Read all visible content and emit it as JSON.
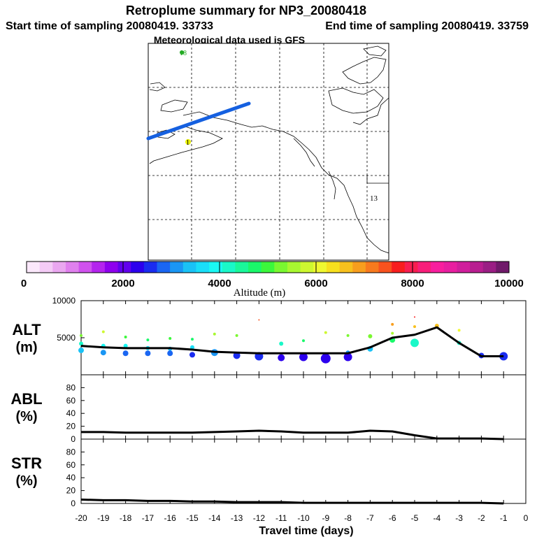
{
  "header": {
    "title": "Retroplume summary for NP3_20080418",
    "start_label": "Start time of sampling 20080419. 33733",
    "end_label": "End time of sampling 20080419. 33759",
    "met_label": "Meteorological data used is GFS"
  },
  "map": {
    "day_labels": [
      {
        "text": "18",
        "color": "#22aa22"
      },
      {
        "text": "13",
        "color": "#000000"
      },
      {
        "text": "1",
        "color": "#000000"
      }
    ],
    "track_color": "#1560e0"
  },
  "colorbar": {
    "label": "Altitude (m)",
    "tick_labels": [
      "0",
      "2000",
      "4000",
      "6000",
      "8000",
      "10000"
    ],
    "colors": [
      "#fbe8fb",
      "#f4cbf6",
      "#eaa7f0",
      "#e080ee",
      "#d052ee",
      "#b424ee",
      "#8e00ee",
      "#6200ee",
      "#2c00ee",
      "#1a2cf0",
      "#1a66f2",
      "#1a96f4",
      "#1ac2f6",
      "#1adef8",
      "#1af8f4",
      "#1af8c8",
      "#1af89a",
      "#1af86a",
      "#3cf83c",
      "#7af830",
      "#a8f830",
      "#cef830",
      "#f0f830",
      "#f8e01e",
      "#f8c01e",
      "#f89e1e",
      "#f87a1e",
      "#f8521e",
      "#f81e1e",
      "#f81e50",
      "#f81e7a",
      "#f81e9e",
      "#e81ea0",
      "#d01e9c",
      "#b81e90",
      "#9a1e84",
      "#701a6a"
    ]
  },
  "chart_data": [
    {
      "type": "line",
      "panel": "ALT",
      "ylabel": "ALT\n(m)",
      "ylabel_lines": [
        "ALT",
        "(m)"
      ],
      "ylim": [
        0,
        10000
      ],
      "yticks": [
        "10000",
        "5000"
      ],
      "x": [
        -20,
        -19,
        -18,
        -17,
        -16,
        -15,
        -14,
        -13,
        -12,
        -11,
        -10,
        -9,
        -8,
        -7,
        -6,
        -5,
        -4,
        -3,
        -2,
        -1
      ],
      "values": [
        3900,
        3700,
        3600,
        3600,
        3600,
        3400,
        3100,
        3000,
        2900,
        2900,
        2900,
        2900,
        2900,
        3700,
        5000,
        5400,
        6400,
        4300,
        2500,
        2500
      ],
      "particles": [
        {
          "x": -20,
          "y": 5300,
          "r": 2
        },
        {
          "x": -20,
          "y": 4200,
          "r": 3
        },
        {
          "x": -20,
          "y": 3300,
          "r": 4
        },
        {
          "x": -19,
          "y": 5800,
          "r": 2
        },
        {
          "x": -19,
          "y": 3900,
          "r": 3
        },
        {
          "x": -19,
          "y": 3000,
          "r": 4
        },
        {
          "x": -18,
          "y": 5100,
          "r": 2
        },
        {
          "x": -18,
          "y": 3900,
          "r": 3
        },
        {
          "x": -18,
          "y": 2900,
          "r": 4
        },
        {
          "x": -17,
          "y": 4700,
          "r": 2
        },
        {
          "x": -17,
          "y": 3600,
          "r": 3
        },
        {
          "x": -17,
          "y": 2900,
          "r": 4
        },
        {
          "x": -16,
          "y": 4900,
          "r": 2
        },
        {
          "x": -16,
          "y": 3500,
          "r": 3
        },
        {
          "x": -16,
          "y": 2900,
          "r": 4
        },
        {
          "x": -15,
          "y": 4800,
          "r": 2
        },
        {
          "x": -15,
          "y": 3700,
          "r": 3
        },
        {
          "x": -15,
          "y": 2700,
          "r": 4
        },
        {
          "x": -14,
          "y": 5500,
          "r": 2
        },
        {
          "x": -14,
          "y": 3000,
          "r": 5
        },
        {
          "x": -13,
          "y": 5300,
          "r": 2
        },
        {
          "x": -13,
          "y": 2600,
          "r": 5
        },
        {
          "x": -12,
          "y": 7400,
          "r": 1
        },
        {
          "x": -12,
          "y": 2500,
          "r": 6
        },
        {
          "x": -11,
          "y": 4200,
          "r": 3
        },
        {
          "x": -11,
          "y": 2300,
          "r": 5
        },
        {
          "x": -10,
          "y": 4600,
          "r": 2
        },
        {
          "x": -10,
          "y": 2400,
          "r": 6
        },
        {
          "x": -9,
          "y": 5700,
          "r": 2
        },
        {
          "x": -9,
          "y": 2200,
          "r": 7
        },
        {
          "x": -8,
          "y": 5300,
          "r": 2
        },
        {
          "x": -8,
          "y": 3000,
          "r": 3
        },
        {
          "x": -8,
          "y": 2400,
          "r": 6
        },
        {
          "x": -7,
          "y": 5200,
          "r": 3
        },
        {
          "x": -7,
          "y": 3500,
          "r": 4
        },
        {
          "x": -6,
          "y": 6800,
          "r": 2
        },
        {
          "x": -6,
          "y": 5600,
          "r": 2
        },
        {
          "x": -6,
          "y": 4700,
          "r": 4
        },
        {
          "x": -5,
          "y": 7800,
          "r": 1
        },
        {
          "x": -5,
          "y": 6500,
          "r": 2
        },
        {
          "x": -5,
          "y": 4300,
          "r": 6
        },
        {
          "x": -4,
          "y": 6600,
          "r": 3
        },
        {
          "x": -3,
          "y": 6000,
          "r": 2
        },
        {
          "x": -3,
          "y": 4300,
          "r": 3
        },
        {
          "x": -2,
          "y": 2600,
          "r": 4
        },
        {
          "x": -1,
          "y": 2500,
          "r": 6
        }
      ]
    },
    {
      "type": "line",
      "panel": "ABL",
      "ylabel": "ABL\n(%)",
      "ylabel_lines": [
        "ABL",
        "(%)"
      ],
      "ylim": [
        0,
        100
      ],
      "yticks": [
        "80",
        "60",
        "40",
        "20",
        "0"
      ],
      "x": [
        -20,
        -19,
        -18,
        -17,
        -16,
        -15,
        -14,
        -13,
        -12,
        -11,
        -10,
        -9,
        -8,
        -7,
        -6,
        -5,
        -4,
        -3,
        -2,
        -1
      ],
      "values": [
        11,
        11,
        10,
        10,
        10,
        10,
        11,
        12,
        13,
        12,
        10,
        10,
        10,
        13,
        12,
        6,
        1,
        1,
        1,
        0
      ]
    },
    {
      "type": "line",
      "panel": "STR",
      "ylabel": "STR\n(%)",
      "ylabel_lines": [
        "STR",
        "(%)"
      ],
      "ylim": [
        0,
        100
      ],
      "yticks": [
        "80",
        "60",
        "40",
        "20",
        "0"
      ],
      "x": [
        -20,
        -19,
        -18,
        -17,
        -16,
        -15,
        -14,
        -13,
        -12,
        -11,
        -10,
        -9,
        -8,
        -7,
        -6,
        -5,
        -4,
        -3,
        -2,
        -1
      ],
      "values": [
        6,
        5,
        5,
        4,
        4,
        3,
        3,
        2,
        2,
        2,
        1,
        1,
        1,
        1,
        1,
        1,
        1,
        1,
        1,
        0
      ],
      "xlabel": "Travel time (days)",
      "xticks": [
        "-20",
        "-19",
        "-18",
        "-17",
        "-16",
        "-15",
        "-14",
        "-13",
        "-12",
        "-11",
        "-10",
        "-9",
        "-8",
        "-7",
        "-6",
        "-5",
        "-4",
        "-3",
        "-2",
        "-1",
        "0"
      ],
      "xlim": [
        -20,
        0
      ]
    }
  ]
}
